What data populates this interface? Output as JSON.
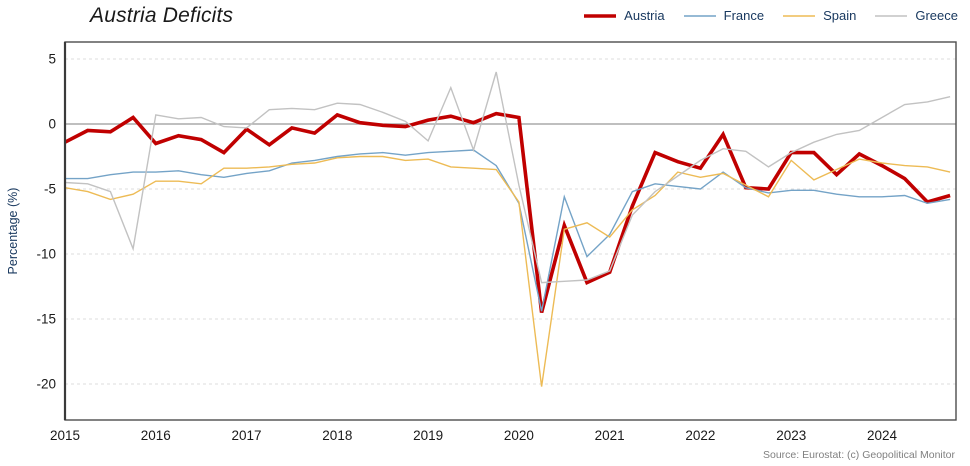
{
  "title": "Austria Deficits",
  "y_axis_label": "Percentage (%)",
  "source": "Source: Eurostat: (c) Geopolitical Monitor",
  "colors": {
    "austria_red": "#C00000",
    "france_blue": "#74A3C7",
    "spain_orange": "#EDBB55",
    "greece_gray": "#C2C2C2",
    "zero_line": "#999999",
    "gridline": "#DCDCDC",
    "frame": "#4d4d4d",
    "label_navy": "#17375E",
    "tick_text": "#1a1a1a",
    "source_text": "#808080"
  },
  "chart_data": {
    "type": "line",
    "frequency": "quarterly",
    "x_start": "2015 Q1",
    "x_end": "2024 Q4",
    "x_tick_labels": [
      "2015",
      "2016",
      "2017",
      "2018",
      "2019",
      "2020",
      "2021",
      "2022",
      "2023",
      "2024"
    ],
    "y_ticks": [
      5,
      0,
      -5,
      -10,
      -15,
      -20
    ],
    "ylim": [
      -22.5,
      6.5
    ],
    "grid": "dashed-horizontal",
    "zero_line": true,
    "legend_position": "top-right",
    "xlabel": "",
    "ylabel": "Percentage (%)",
    "series": [
      {
        "name": "Austria",
        "color": "#C00000",
        "width": 3.6,
        "values": [
          -1.4,
          -0.5,
          -0.6,
          0.5,
          -1.5,
          -0.9,
          -1.2,
          -2.2,
          -0.4,
          -1.6,
          -0.3,
          -0.7,
          0.7,
          0.1,
          -0.1,
          -0.2,
          0.3,
          0.6,
          0.1,
          0.8,
          0.5,
          -14.5,
          -7.8,
          -12.2,
          -11.4,
          -6.3,
          -2.2,
          -2.9,
          -3.4,
          -0.8,
          -4.9,
          -5.0,
          -2.2,
          -2.2,
          -3.9,
          -2.3,
          -3.2,
          -4.2,
          -6.0,
          -5.5
        ]
      },
      {
        "name": "France",
        "color": "#74A3C7",
        "width": 1.4,
        "values": [
          -4.2,
          -4.2,
          -3.9,
          -3.7,
          -3.7,
          -3.6,
          -3.9,
          -4.1,
          -3.8,
          -3.6,
          -3.0,
          -2.8,
          -2.5,
          -2.3,
          -2.2,
          -2.4,
          -2.2,
          -2.1,
          -2.0,
          -3.2,
          -6.1,
          -14.4,
          -5.6,
          -10.2,
          -8.5,
          -5.2,
          -4.6,
          -4.8,
          -5.0,
          -3.7,
          -4.9,
          -5.3,
          -5.1,
          -5.1,
          -5.4,
          -5.6,
          -5.6,
          -5.5,
          -6.1,
          -5.8
        ]
      },
      {
        "name": "Spain",
        "color": "#EDBB55",
        "width": 1.4,
        "values": [
          -4.9,
          -5.2,
          -5.8,
          -5.4,
          -4.4,
          -4.4,
          -4.6,
          -3.4,
          -3.4,
          -3.3,
          -3.1,
          -3.0,
          -2.6,
          -2.5,
          -2.5,
          -2.8,
          -2.7,
          -3.3,
          -3.4,
          -3.5,
          -6.0,
          -20.2,
          -8.1,
          -7.6,
          -8.7,
          -6.6,
          -5.5,
          -3.7,
          -4.1,
          -3.8,
          -4.7,
          -5.6,
          -2.8,
          -4.3,
          -3.5,
          -2.7,
          -3.0,
          -3.2,
          -3.3,
          -3.7
        ]
      },
      {
        "name": "Greece",
        "color": "#C2C2C2",
        "width": 1.4,
        "values": [
          -4.5,
          -4.6,
          -5.2,
          -9.6,
          0.7,
          0.4,
          0.5,
          -0.2,
          -0.3,
          1.1,
          1.2,
          1.1,
          1.6,
          1.5,
          0.9,
          0.2,
          -1.3,
          2.8,
          -2.0,
          4.0,
          -4.7,
          -12.2,
          -12.1,
          -12.0,
          -11.3,
          -7.0,
          -5.2,
          -4.0,
          -2.8,
          -1.9,
          -2.1,
          -3.3,
          -2.2,
          -1.4,
          -0.8,
          -0.5,
          0.5,
          1.5,
          1.7,
          2.1
        ]
      }
    ]
  }
}
